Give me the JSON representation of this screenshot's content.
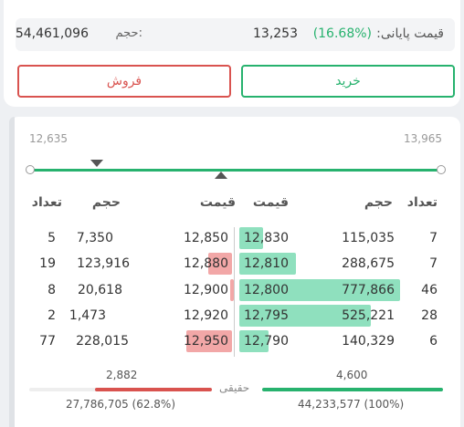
{
  "summary": {
    "final_price_label": "قیمت پایانی:",
    "final_price_pct": "(16.68%)",
    "final_price_value": "13,253",
    "volume_label": "حجم:",
    "volume_value": "54,461,096"
  },
  "actions": {
    "buy_label": "خرید",
    "sell_label": "فروش"
  },
  "price_range": {
    "min": "12,635",
    "max": "13,965"
  },
  "headers": {
    "buy_count": "تعداد",
    "buy_volume": "حجم",
    "buy_price": "قیمت",
    "sell_price": "قیمت",
    "sell_volume": "حجم",
    "sell_count": "تعداد"
  },
  "order_book": {
    "rows": [
      {
        "buy_count": "7",
        "buy_volume": "115,035",
        "buy_price": "12,830",
        "sell_price": "12,850",
        "sell_volume": "7,350",
        "sell_count": "5"
      },
      {
        "buy_count": "7",
        "buy_volume": "288,675",
        "buy_price": "12,810",
        "sell_price": "12,880",
        "sell_volume": "123,916",
        "sell_count": "19"
      },
      {
        "buy_count": "46",
        "buy_volume": "777,866",
        "buy_price": "12,800",
        "sell_price": "12,900",
        "sell_volume": "20,618",
        "sell_count": "8"
      },
      {
        "buy_count": "28",
        "buy_volume": "525,221",
        "buy_price": "12,795",
        "sell_price": "12,920",
        "sell_volume": "1,473",
        "sell_count": "2"
      },
      {
        "buy_count": "6",
        "buy_volume": "140,329",
        "buy_price": "12,790",
        "sell_price": "12,950",
        "sell_volume": "228,015",
        "sell_count": "77"
      }
    ]
  },
  "footer": {
    "buy_count_total": "4,600",
    "sell_count_total": "2,882",
    "label": "حقیقی",
    "buy_volume_total": "44,233,577 (100%)",
    "sell_volume_total": "27,786,705 (62.8%)"
  },
  "colors": {
    "green": "#27b26e",
    "red": "#d9534f",
    "green_bar": "#8fe0be",
    "red_bar": "#f2a7a7"
  }
}
